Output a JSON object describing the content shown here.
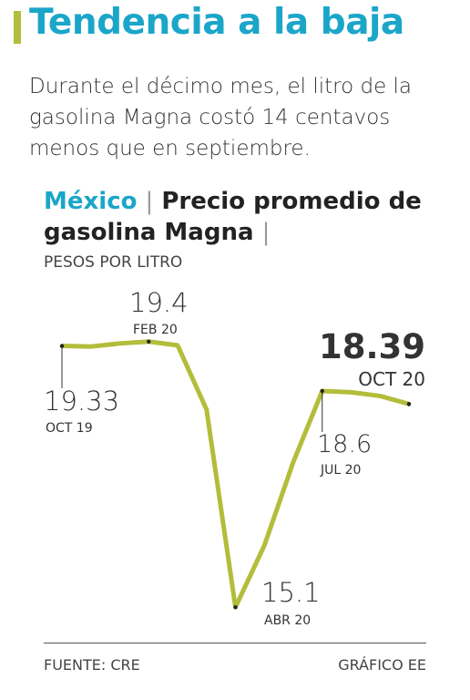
{
  "header": {
    "title": "Tendencia a la baja",
    "subtitle": "Durante el décimo mes, el litro de la gasolina Magna costó 14 centavos menos que en septiembre."
  },
  "chart_data": {
    "type": "line",
    "region": "México",
    "title": "Precio promedio de gasolina Magna",
    "unit": "PESOS POR LITRO",
    "categories": [
      "OCT 19",
      null,
      null,
      "FEB 20",
      null,
      null,
      "ABR 20",
      null,
      null,
      "JUL 20",
      null,
      null,
      "OCT 20"
    ],
    "values": [
      19.33,
      19.32,
      19.37,
      19.4,
      19.34,
      18.3,
      15.1,
      16.1,
      17.45,
      18.6,
      18.58,
      18.52,
      18.39
    ],
    "color": "#b3bd3a",
    "ylim": [
      15,
      19.5
    ]
  },
  "footer": {
    "source": "FUENTE: CRE",
    "credit": "GRÁFICO EE"
  }
}
